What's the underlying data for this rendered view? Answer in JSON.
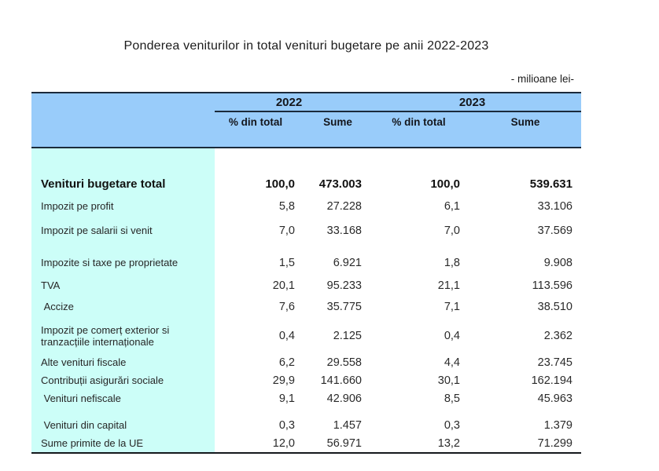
{
  "title": "Ponderea veniturilor in total venituri bugetare pe anii 2022-2023",
  "unit_note": "- milioane lei-",
  "colors": {
    "header_blue": "#99CCFA",
    "label_column_cyan": "#CCFEF8",
    "border_dark": "#1b2a3b"
  },
  "table": {
    "year_headers": [
      "2022",
      "2023"
    ],
    "sub_headers": [
      "% din total",
      "Sume",
      "% din total",
      "Sume"
    ],
    "rows": [
      {
        "label": "Venituri bugetare total",
        "bold": true,
        "values": [
          "100,0",
          "473.003",
          "100,0",
          "539.631"
        ]
      },
      {
        "label": "Impozit pe profit",
        "bold": false,
        "values": [
          "5,8",
          "27.228",
          "6,1",
          "33.106"
        ]
      },
      {
        "label": "Impozit pe salarii si venit",
        "bold": false,
        "values": [
          "7,0",
          "33.168",
          "7,0",
          "37.569"
        ]
      },
      {
        "label": "Impozite si taxe pe proprietate",
        "bold": false,
        "values": [
          "1,5",
          "6.921",
          "1,8",
          "9.908"
        ]
      },
      {
        "label": "TVA",
        "bold": false,
        "values": [
          "20,1",
          "95.233",
          "21,1",
          "113.596"
        ]
      },
      {
        "label": " Accize",
        "bold": false,
        "values": [
          "7,6",
          "35.775",
          "7,1",
          "38.510"
        ]
      },
      {
        "label": "Impozit pe comerț exterior si tranzacțiile internaționale",
        "bold": false,
        "values": [
          "0,4",
          "2.125",
          "0,4",
          "2.362"
        ]
      },
      {
        "label": "Alte venituri fiscale",
        "bold": false,
        "values": [
          "6,2",
          "29.558",
          "4,4",
          "23.745"
        ]
      },
      {
        "label": "Contribuții asigurări sociale",
        "bold": false,
        "values": [
          "29,9",
          "141.660",
          "30,1",
          "162.194"
        ]
      },
      {
        "label": " Venituri nefiscale",
        "bold": false,
        "values": [
          "9,1",
          "42.906",
          "8,5",
          "45.963"
        ]
      },
      {
        "label": " Venituri din capital",
        "bold": false,
        "values": [
          "0,3",
          "1.457",
          "0,3",
          "1.379"
        ]
      },
      {
        "label": "Sume primite de la UE",
        "bold": false,
        "values": [
          "12,0",
          "56.971",
          "13,2",
          "71.299"
        ]
      }
    ]
  }
}
